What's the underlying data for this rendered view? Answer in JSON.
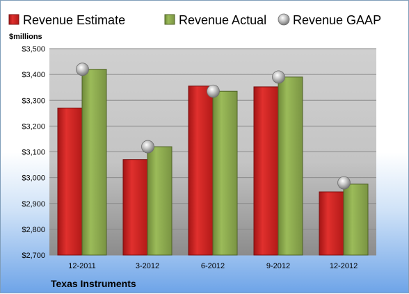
{
  "chart_data": {
    "type": "bar",
    "unit_label": "$millions",
    "categories": [
      "12-2011",
      "3-2012",
      "6-2012",
      "9-2012",
      "12-2012"
    ],
    "series": [
      {
        "name": "Revenue Estimate",
        "color": "#cc1f1f",
        "values": [
          3270,
          3070,
          3355,
          3352,
          2945
        ]
      },
      {
        "name": "Revenue Actual",
        "color": "#8aa84e",
        "values": [
          3420,
          3120,
          3335,
          3390,
          2975
        ]
      },
      {
        "name": "Revenue GAAP",
        "color": "#bfbfbf",
        "marker": "sphere",
        "values": [
          3420,
          3120,
          3335,
          3390,
          2980
        ]
      }
    ],
    "ylim": [
      2700,
      3500
    ],
    "yticks": [
      2700,
      2800,
      2900,
      3000,
      3100,
      3200,
      3300,
      3400,
      3500
    ],
    "ytick_labels": [
      "$2,700",
      "$2,800",
      "$2,900",
      "$3,000",
      "$3,100",
      "$3,200",
      "$3,300",
      "$3,400",
      "$3,500"
    ],
    "grid": true,
    "legend_position": "top"
  },
  "footer": {
    "company": "Texas Instruments"
  }
}
